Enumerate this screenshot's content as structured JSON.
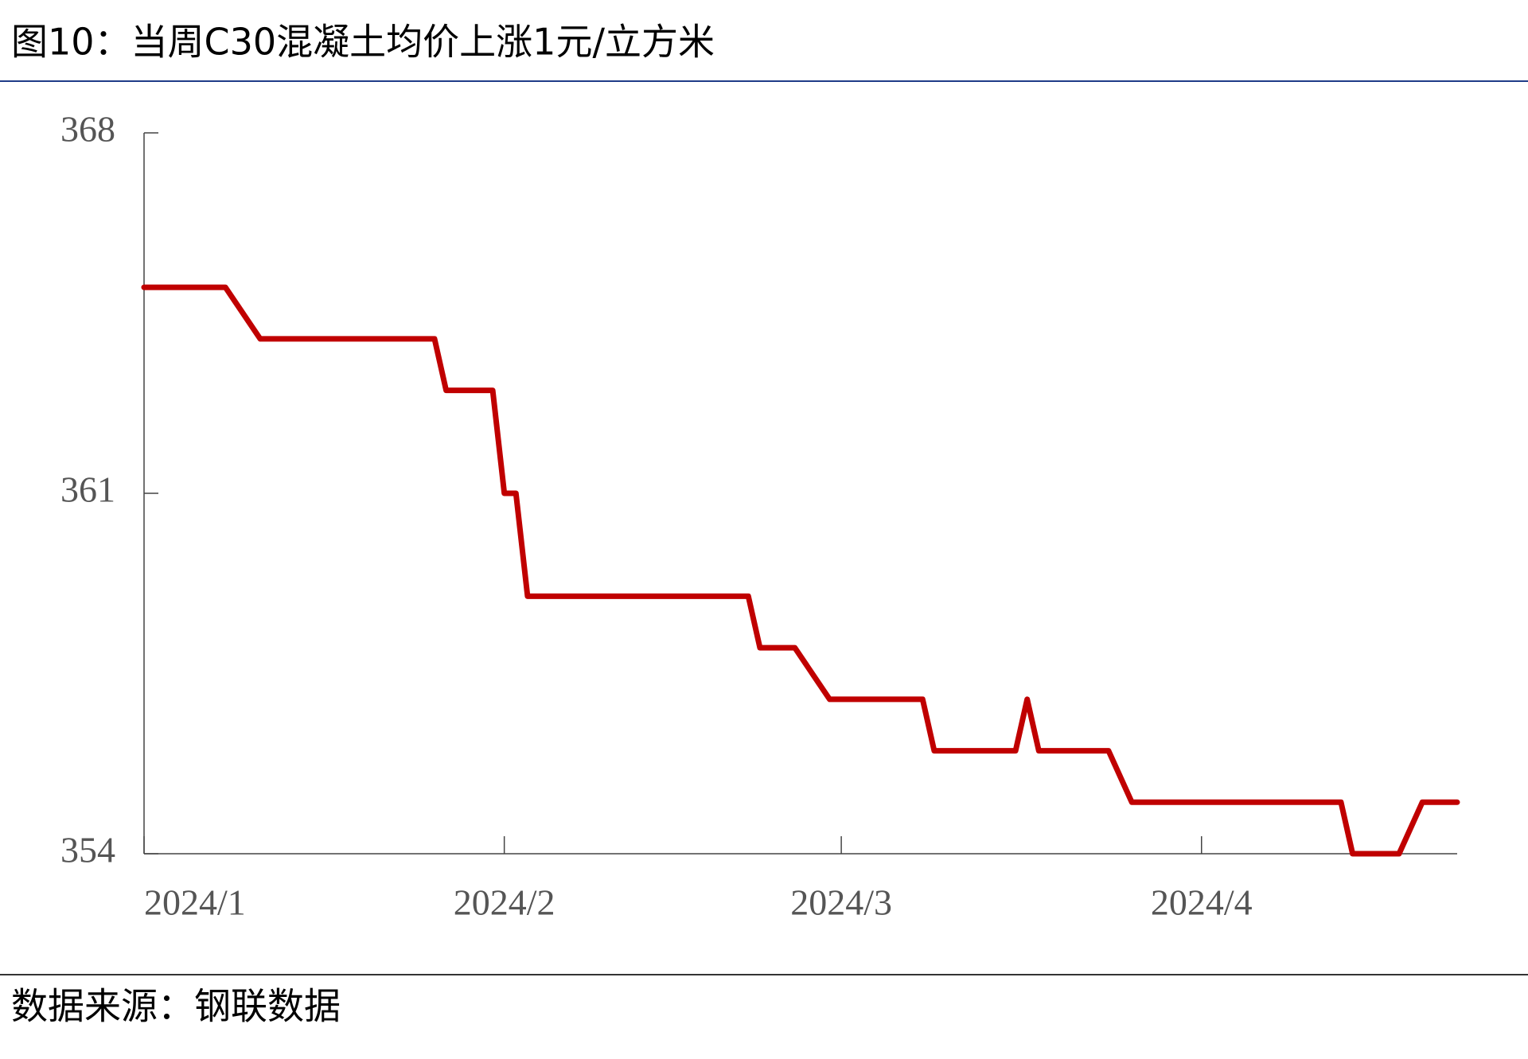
{
  "chart_data": {
    "type": "line",
    "title": "图10：当周C30混凝土均价上涨1元/立方米",
    "source": "数据来源：钢联数据",
    "x": [
      0,
      7,
      10,
      25,
      26,
      30,
      31,
      32,
      33,
      52,
      53,
      56,
      59,
      67,
      68,
      75,
      76,
      77,
      83,
      85,
      103,
      104,
      108,
      110,
      113
    ],
    "series": [
      {
        "name": "C30混凝土均价",
        "color": "#c00000",
        "values": [
          365,
          365,
          364,
          364,
          363,
          363,
          361,
          361,
          359,
          359,
          358,
          358,
          357,
          357,
          356,
          356,
          357,
          356,
          356,
          355,
          355,
          354,
          354,
          355,
          355
        ]
      }
    ],
    "xlim": [
      0,
      113
    ],
    "xticks": [
      {
        "value": 0,
        "label": "2024/1"
      },
      {
        "value": 31,
        "label": "2024/2"
      },
      {
        "value": 60,
        "label": "2024/3"
      },
      {
        "value": 91,
        "label": "2024/4"
      }
    ],
    "ylim": [
      354,
      368
    ],
    "yticks": [
      354,
      361,
      368
    ],
    "grid": false
  }
}
